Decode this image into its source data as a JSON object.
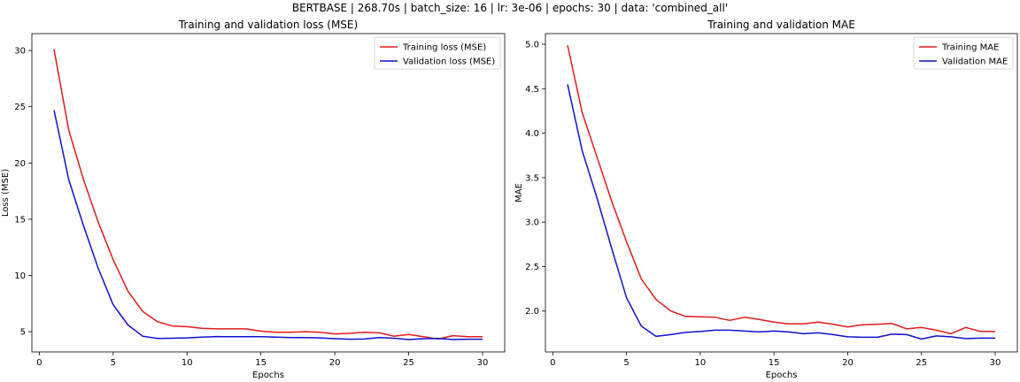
{
  "suptitle": "BERTBASE | 268.70s | batch_size: 16 | lr: 3e-06 | epochs: 30 | data: 'combined_all'",
  "colors": {
    "train": "#e31a1c",
    "val": "#1010d0"
  },
  "chart_data": [
    {
      "type": "line",
      "title": "Training and validation loss (MSE)",
      "xlabel": "Epochs",
      "ylabel": "Loss (MSE)",
      "xlim": [
        -0.5,
        31.5
      ],
      "ylim": [
        3.2,
        31.5
      ],
      "xticks": [
        0,
        5,
        10,
        15,
        20,
        25,
        30
      ],
      "yticks": [
        5,
        10,
        15,
        20,
        25,
        30
      ],
      "grid": false,
      "legend": "top-right",
      "x": [
        1,
        2,
        3,
        4,
        5,
        6,
        7,
        8,
        9,
        10,
        11,
        12,
        13,
        14,
        15,
        16,
        17,
        18,
        19,
        20,
        21,
        22,
        23,
        24,
        25,
        26,
        27,
        28,
        29,
        30
      ],
      "series": [
        {
          "name": "Training loss (MSE)",
          "color_key": "train",
          "values": [
            30.1,
            22.9,
            18.5,
            14.7,
            11.4,
            8.6,
            6.8,
            5.9,
            5.5,
            5.45,
            5.3,
            5.25,
            5.25,
            5.25,
            5.05,
            4.95,
            4.95,
            5.0,
            4.95,
            4.8,
            4.85,
            4.95,
            4.9,
            4.6,
            4.75,
            4.55,
            4.35,
            4.65,
            4.55,
            4.55
          ]
        },
        {
          "name": "Validation loss (MSE)",
          "color_key": "val",
          "values": [
            24.7,
            18.5,
            14.4,
            10.6,
            7.4,
            5.6,
            4.6,
            4.4,
            4.42,
            4.45,
            4.52,
            4.57,
            4.55,
            4.55,
            4.55,
            4.52,
            4.48,
            4.48,
            4.45,
            4.38,
            4.33,
            4.35,
            4.48,
            4.42,
            4.3,
            4.38,
            4.4,
            4.3,
            4.33,
            4.33
          ]
        }
      ]
    },
    {
      "type": "line",
      "title": "Training and validation MAE",
      "xlabel": "Epochs",
      "ylabel": "MAE",
      "xlim": [
        -0.5,
        31.5
      ],
      "ylim": [
        1.54,
        5.12
      ],
      "xticks": [
        0,
        5,
        10,
        15,
        20,
        25,
        30
      ],
      "yticks": [
        2.0,
        2.5,
        3.0,
        3.5,
        4.0,
        4.5,
        5.0
      ],
      "ytick_labels": [
        "2.0",
        "2.5",
        "3.0",
        "3.5",
        "4.0",
        "4.5",
        "5.0"
      ],
      "grid": false,
      "legend": "top-right",
      "x": [
        1,
        2,
        3,
        4,
        5,
        6,
        7,
        8,
        9,
        10,
        11,
        12,
        13,
        14,
        15,
        16,
        17,
        18,
        19,
        20,
        21,
        22,
        23,
        24,
        25,
        26,
        27,
        28,
        29,
        30
      ],
      "series": [
        {
          "name": "Training MAE",
          "color_key": "train",
          "values": [
            4.99,
            4.23,
            3.73,
            3.23,
            2.78,
            2.36,
            2.13,
            2.0,
            1.94,
            1.935,
            1.93,
            1.895,
            1.93,
            1.905,
            1.875,
            1.855,
            1.855,
            1.875,
            1.85,
            1.82,
            1.845,
            1.85,
            1.86,
            1.8,
            1.815,
            1.785,
            1.745,
            1.815,
            1.77,
            1.77
          ]
        },
        {
          "name": "Validation MAE",
          "color_key": "val",
          "values": [
            4.55,
            3.8,
            3.27,
            2.7,
            2.15,
            1.83,
            1.715,
            1.735,
            1.76,
            1.77,
            1.785,
            1.785,
            1.775,
            1.765,
            1.775,
            1.765,
            1.745,
            1.755,
            1.735,
            1.71,
            1.705,
            1.705,
            1.74,
            1.735,
            1.685,
            1.72,
            1.71,
            1.69,
            1.695,
            1.695
          ]
        }
      ]
    }
  ]
}
